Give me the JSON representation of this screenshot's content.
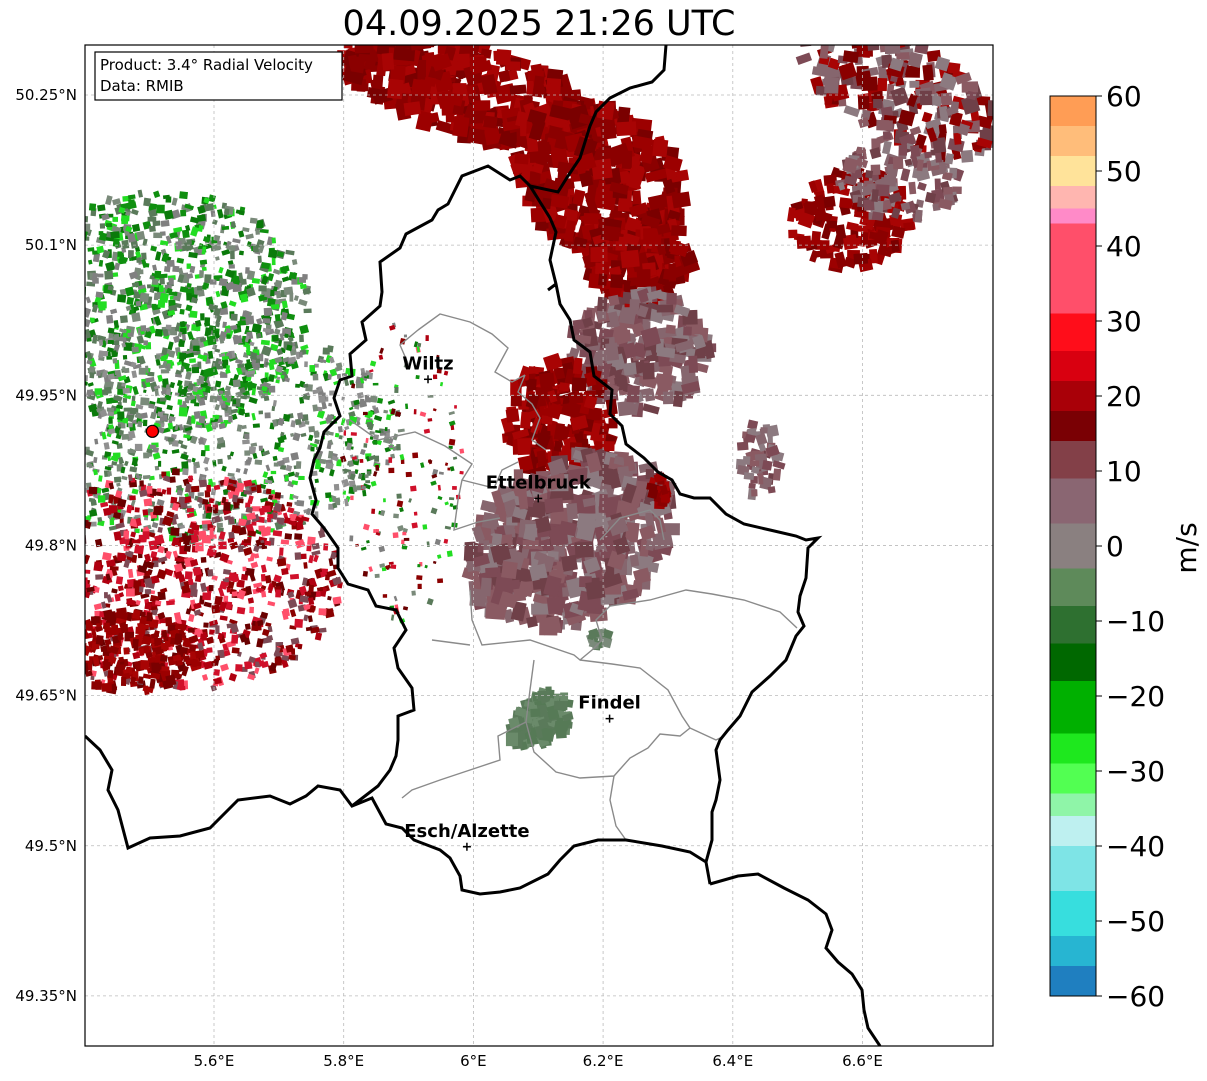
{
  "title": "04.09.2025 21:26 UTC",
  "info": {
    "product": "Product: 3.4° Radial Velocity",
    "source": "Data: RMIB"
  },
  "axes": {
    "lat_ticks": [
      "50.25°N",
      "50.1°N",
      "49.95°N",
      "49.8°N",
      "49.65°N",
      "49.5°N",
      "49.35°N"
    ],
    "lon_ticks": [
      "5.6°E",
      "5.8°E",
      "6°E",
      "6.2°E",
      "6.4°E",
      "6.6°E"
    ]
  },
  "cities": [
    {
      "name": "Wiltz",
      "lon": 5.93,
      "lat": 49.966
    },
    {
      "name": "Ettelbruck",
      "lon": 6.1,
      "lat": 49.847
    },
    {
      "name": "Findel",
      "lon": 6.21,
      "lat": 49.627
    },
    {
      "name": "Esch/Alzette",
      "lon": 5.99,
      "lat": 49.499
    }
  ],
  "radar_site": {
    "lon": 5.505,
    "lat": 49.914
  },
  "colorbar": {
    "unit": "m/s",
    "ticks": [
      "60",
      "50",
      "40",
      "30",
      "20",
      "10",
      "0",
      "−10",
      "−20",
      "−30",
      "−40",
      "−50",
      "−60"
    ],
    "range": [
      -60,
      60
    ],
    "colors_top_to_bottom": [
      "#ff9d55",
      "#ffbd7a",
      "#ffe39a",
      "#ffb6b0",
      "#ff8ac8",
      "#ff4f6a",
      "#ff0d1a",
      "#d90010",
      "#a90008",
      "#7a0004",
      "#834048",
      "#8a6672",
      "#8a8080",
      "#5e8a5a",
      "#2e7030",
      "#006800",
      "#00b000",
      "#1ee81e",
      "#52ff52",
      "#8ff5a8",
      "#bef0f0",
      "#7ee4e6",
      "#37dede",
      "#27b5d2",
      "#1f7fc0"
    ],
    "color_stops": [
      60,
      56,
      52,
      48,
      45,
      43,
      31,
      26,
      22,
      18,
      14,
      9,
      3,
      -3,
      -8,
      -13,
      -18,
      -25,
      -29,
      -33,
      -36,
      -40,
      -46,
      -52,
      -56
    ]
  },
  "colors": {
    "inbound_dark_green": "#0a7a0a",
    "inbound_bright_green": "#22dd22",
    "outbound_dark_red": "#8b0000",
    "outbound_mauve": "#7d4a55",
    "near_zero_gray": "#8c7a80",
    "near_zero_green": "#5a7a5a",
    "border": "#000000",
    "canton_border": "#8a8a8a",
    "grid": "#bbbbbb"
  }
}
